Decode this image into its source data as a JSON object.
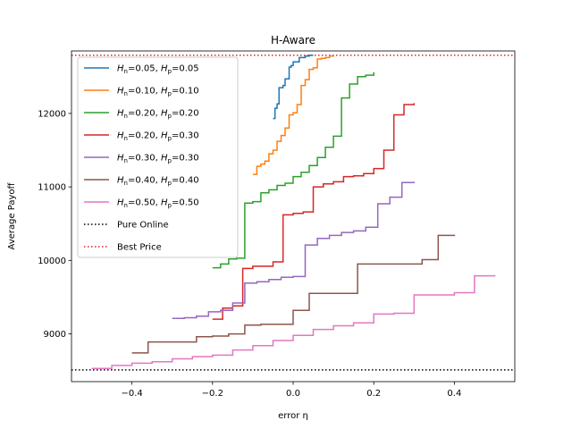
{
  "chart_data": {
    "type": "line",
    "title": "H-Aware",
    "xlabel": "error η",
    "ylabel": "Average Payoff",
    "xlim": [
      -0.55,
      0.55
    ],
    "ylim": [
      8350,
      12850
    ],
    "xticks": [
      -0.4,
      -0.2,
      0.0,
      0.2,
      0.4
    ],
    "xtick_labels": [
      "−0.4",
      "−0.2",
      "0.0",
      "0.2",
      "0.4"
    ],
    "yticks": [
      9000,
      10000,
      11000,
      12000
    ],
    "ytick_labels": [
      "9000",
      "10000",
      "11000",
      "12000"
    ],
    "grid": false,
    "legend_position": "upper-left",
    "series": [
      {
        "name": "Hn=0.05, Hp=0.05",
        "hn": "0.05",
        "hp": "0.05",
        "color": "#1f77b4",
        "style": "solid",
        "x": [
          -0.05,
          -0.045,
          -0.04,
          -0.035,
          -0.03,
          -0.025,
          -0.02,
          -0.015,
          -0.01,
          -0.005,
          0.0,
          0.005,
          0.01,
          0.015,
          0.02,
          0.025,
          0.03,
          0.035,
          0.04,
          0.045,
          0.05
        ],
        "y": [
          11930,
          12070,
          12130,
          12350,
          12350,
          12380,
          12470,
          12470,
          12630,
          12650,
          12700,
          12700,
          12700,
          12760,
          12760,
          12760,
          12780,
          12780,
          12790,
          12790,
          12790
        ]
      },
      {
        "name": "Hn=0.10, Hp=0.10",
        "hn": "0.10",
        "hp": "0.10",
        "color": "#ff7f0e",
        "style": "solid",
        "x": [
          -0.1,
          -0.09,
          -0.08,
          -0.07,
          -0.06,
          -0.05,
          -0.04,
          -0.03,
          -0.02,
          -0.01,
          0.0,
          0.01,
          0.02,
          0.03,
          0.04,
          0.05,
          0.06,
          0.07,
          0.08,
          0.09,
          0.1
        ],
        "y": [
          11170,
          11280,
          11310,
          11350,
          11450,
          11500,
          11620,
          11700,
          11800,
          11980,
          12010,
          12120,
          12380,
          12460,
          12600,
          12620,
          12740,
          12750,
          12760,
          12780,
          12790
        ]
      },
      {
        "name": "Hn=0.20, Hp=0.20",
        "hn": "0.20",
        "hp": "0.20",
        "color": "#2ca02c",
        "style": "solid",
        "x": [
          -0.2,
          -0.18,
          -0.16,
          -0.14,
          -0.12,
          -0.1,
          -0.08,
          -0.06,
          -0.04,
          -0.02,
          0.0,
          0.02,
          0.04,
          0.06,
          0.08,
          0.1,
          0.12,
          0.14,
          0.16,
          0.18,
          0.2
        ],
        "y": [
          9900,
          9950,
          10020,
          10030,
          10780,
          10800,
          10920,
          10960,
          11020,
          11050,
          11140,
          11200,
          11290,
          11400,
          11540,
          11690,
          12210,
          12400,
          12500,
          12520,
          12560
        ]
      },
      {
        "name": "Hn=0.20, Hp=0.30",
        "hn": "0.20",
        "hp": "0.30",
        "color": "#d62728",
        "style": "solid",
        "x": [
          -0.2,
          -0.175,
          -0.15,
          -0.125,
          -0.1,
          -0.075,
          -0.05,
          -0.025,
          0.0,
          0.025,
          0.05,
          0.075,
          0.1,
          0.125,
          0.15,
          0.175,
          0.2,
          0.225,
          0.25,
          0.275,
          0.3
        ],
        "y": [
          9200,
          9350,
          9380,
          9890,
          9920,
          9920,
          9980,
          10620,
          10640,
          10660,
          11000,
          11040,
          11070,
          11140,
          11150,
          11180,
          11250,
          11500,
          11980,
          12120,
          12140
        ]
      },
      {
        "name": "Hn=0.30, Hp=0.30",
        "hn": "0.30",
        "hp": "0.30",
        "color": "#9467bd",
        "style": "solid",
        "x": [
          -0.3,
          -0.27,
          -0.24,
          -0.21,
          -0.18,
          -0.15,
          -0.12,
          -0.09,
          -0.06,
          -0.03,
          0.0,
          0.03,
          0.06,
          0.09,
          0.12,
          0.15,
          0.18,
          0.21,
          0.24,
          0.27,
          0.3
        ],
        "y": [
          9210,
          9220,
          9240,
          9300,
          9320,
          9420,
          9690,
          9710,
          9740,
          9770,
          9780,
          10210,
          10300,
          10340,
          10380,
          10400,
          10450,
          10770,
          10860,
          11060,
          11070
        ]
      },
      {
        "name": "Hn=0.40, Hp=0.40",
        "hn": "0.40",
        "hp": "0.40",
        "color": "#8c564b",
        "style": "solid",
        "x": [
          -0.4,
          -0.36,
          -0.32,
          -0.28,
          -0.24,
          -0.2,
          -0.16,
          -0.12,
          -0.08,
          -0.04,
          0.0,
          0.04,
          0.08,
          0.12,
          0.16,
          0.2,
          0.24,
          0.28,
          0.32,
          0.36,
          0.4
        ],
        "y": [
          8740,
          8890,
          8890,
          8890,
          8960,
          8970,
          9000,
          9120,
          9130,
          9130,
          9320,
          9550,
          9550,
          9550,
          9950,
          9950,
          9950,
          9950,
          10010,
          10340,
          10350
        ]
      },
      {
        "name": "Hn=0.50, Hp=0.50",
        "hn": "0.50",
        "hp": "0.50",
        "color": "#e377c2",
        "style": "solid",
        "x": [
          -0.5,
          -0.45,
          -0.4,
          -0.35,
          -0.3,
          -0.25,
          -0.2,
          -0.15,
          -0.1,
          -0.05,
          0.0,
          0.05,
          0.1,
          0.15,
          0.2,
          0.25,
          0.3,
          0.35,
          0.4,
          0.45,
          0.5
        ],
        "y": [
          8530,
          8570,
          8600,
          8620,
          8660,
          8690,
          8710,
          8780,
          8840,
          8910,
          8980,
          9060,
          9110,
          9150,
          9270,
          9280,
          9530,
          9530,
          9560,
          9790,
          9800
        ]
      }
    ],
    "hlines": [
      {
        "name": "Pure Online",
        "y": 8510,
        "color": "#000000",
        "style": "dotted"
      },
      {
        "name": "Best Price",
        "y": 12790,
        "color": "#d62728",
        "style": "dotted"
      }
    ]
  }
}
